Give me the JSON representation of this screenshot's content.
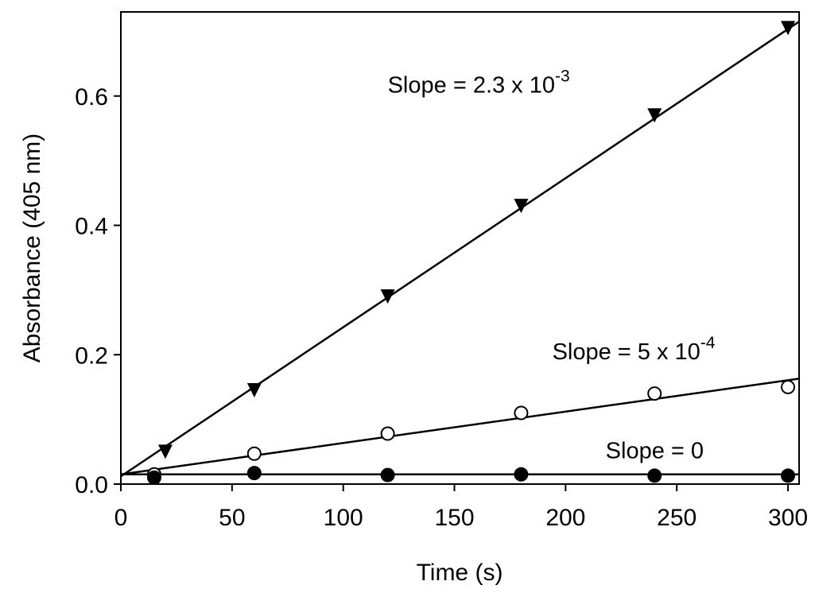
{
  "chart_data": {
    "type": "scatter",
    "title": "",
    "xlabel": "Time (s)",
    "ylabel": "Absorbance (405 nm)",
    "xlim": [
      0,
      305
    ],
    "ylim": [
      0,
      0.73
    ],
    "x_ticks": [
      "0",
      "50",
      "100",
      "150",
      "200",
      "250",
      "300"
    ],
    "y_ticks": [
      "0.0",
      "0.2",
      "0.4",
      "0.6"
    ],
    "grid": false,
    "legend": "none",
    "series": [
      {
        "marker": "filled-triangle-down",
        "points": [
          [
            20,
            0.05
          ],
          [
            60,
            0.145
          ],
          [
            120,
            0.29
          ],
          [
            180,
            0.43
          ],
          [
            240,
            0.57
          ],
          [
            300,
            0.705
          ]
        ],
        "fit": {
          "x0": 0,
          "y0": 0.012,
          "x1": 305,
          "y1": 0.715
        }
      },
      {
        "marker": "open-circle",
        "points": [
          [
            15,
            0.015
          ],
          [
            60,
            0.047
          ],
          [
            120,
            0.078
          ],
          [
            180,
            0.11
          ],
          [
            240,
            0.14
          ],
          [
            300,
            0.15
          ]
        ],
        "fit": {
          "x0": 0,
          "y0": 0.015,
          "x1": 305,
          "y1": 0.163
        }
      },
      {
        "marker": "filled-circle",
        "points": [
          [
            15,
            0.01
          ],
          [
            60,
            0.017
          ],
          [
            120,
            0.014
          ],
          [
            180,
            0.015
          ],
          [
            240,
            0.013
          ],
          [
            300,
            0.013
          ]
        ],
        "fit": {
          "x0": 0,
          "y0": 0.015,
          "x1": 305,
          "y1": 0.015
        }
      }
    ],
    "annotations": [
      {
        "text": "Slope = 2.3 x 10",
        "sup": "-3",
        "anchor_x": 120,
        "anchor_y": 0.605
      },
      {
        "text": "Slope = 5 x 10",
        "sup": "-4",
        "anchor_x": 194,
        "anchor_y": 0.193
      },
      {
        "text": "Slope = 0",
        "anchor_x": 218,
        "anchor_y": 0.04
      }
    ]
  }
}
